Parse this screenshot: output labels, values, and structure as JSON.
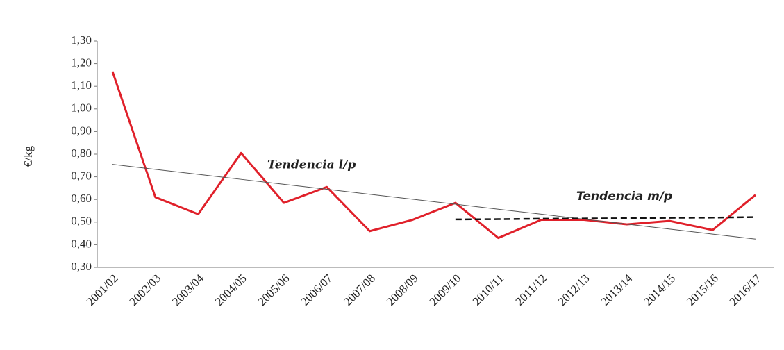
{
  "chart_data": {
    "type": "line",
    "y_label": "€/kg",
    "categories": [
      "2001/02",
      "2002/03",
      "2003/04",
      "2004/05",
      "2005/06",
      "2006/07",
      "2007/08",
      "2008/09",
      "2009/10",
      "2010/11",
      "2011/12",
      "2012/13",
      "2013/14",
      "2014/15",
      "2015/16",
      "2016/17"
    ],
    "series": [
      {
        "color": "#e0202a",
        "style": "solid",
        "values": [
          1.165,
          0.61,
          0.535,
          0.805,
          0.585,
          0.655,
          0.46,
          0.51,
          0.585,
          0.43,
          0.51,
          0.51,
          0.49,
          0.505,
          0.465,
          0.62
        ]
      },
      {
        "name": "Tendencia l/p",
        "color": "#555555",
        "style": "thin",
        "values": [
          0.755,
          0.733,
          0.711,
          0.689,
          0.667,
          0.645,
          0.623,
          0.601,
          0.579,
          0.557,
          0.535,
          0.513,
          0.491,
          0.469,
          0.447,
          0.425
        ]
      },
      {
        "name": "Tendencia m/p",
        "color": "#111111",
        "style": "dashed",
        "values": [
          null,
          null,
          null,
          null,
          null,
          null,
          null,
          null,
          0.512,
          0.513,
          0.515,
          0.516,
          0.517,
          0.519,
          0.52,
          0.522
        ]
      }
    ],
    "ylim": [
      0.3,
      1.3
    ],
    "yticks": [
      {
        "value": 0.3,
        "label": "0,30"
      },
      {
        "value": 0.4,
        "label": "0,40"
      },
      {
        "value": 0.5,
        "label": "0,50"
      },
      {
        "value": 0.6,
        "label": "0,60"
      },
      {
        "value": 0.7,
        "label": "0,70"
      },
      {
        "value": 0.8,
        "label": "0,80"
      },
      {
        "value": 0.9,
        "label": "0,90"
      },
      {
        "value": 1.0,
        "label": "1,00"
      },
      {
        "value": 1.1,
        "label": "1,10"
      },
      {
        "value": 1.2,
        "label": "1,20"
      },
      {
        "value": 1.3,
        "label": "1,30"
      }
    ],
    "grid": false
  }
}
